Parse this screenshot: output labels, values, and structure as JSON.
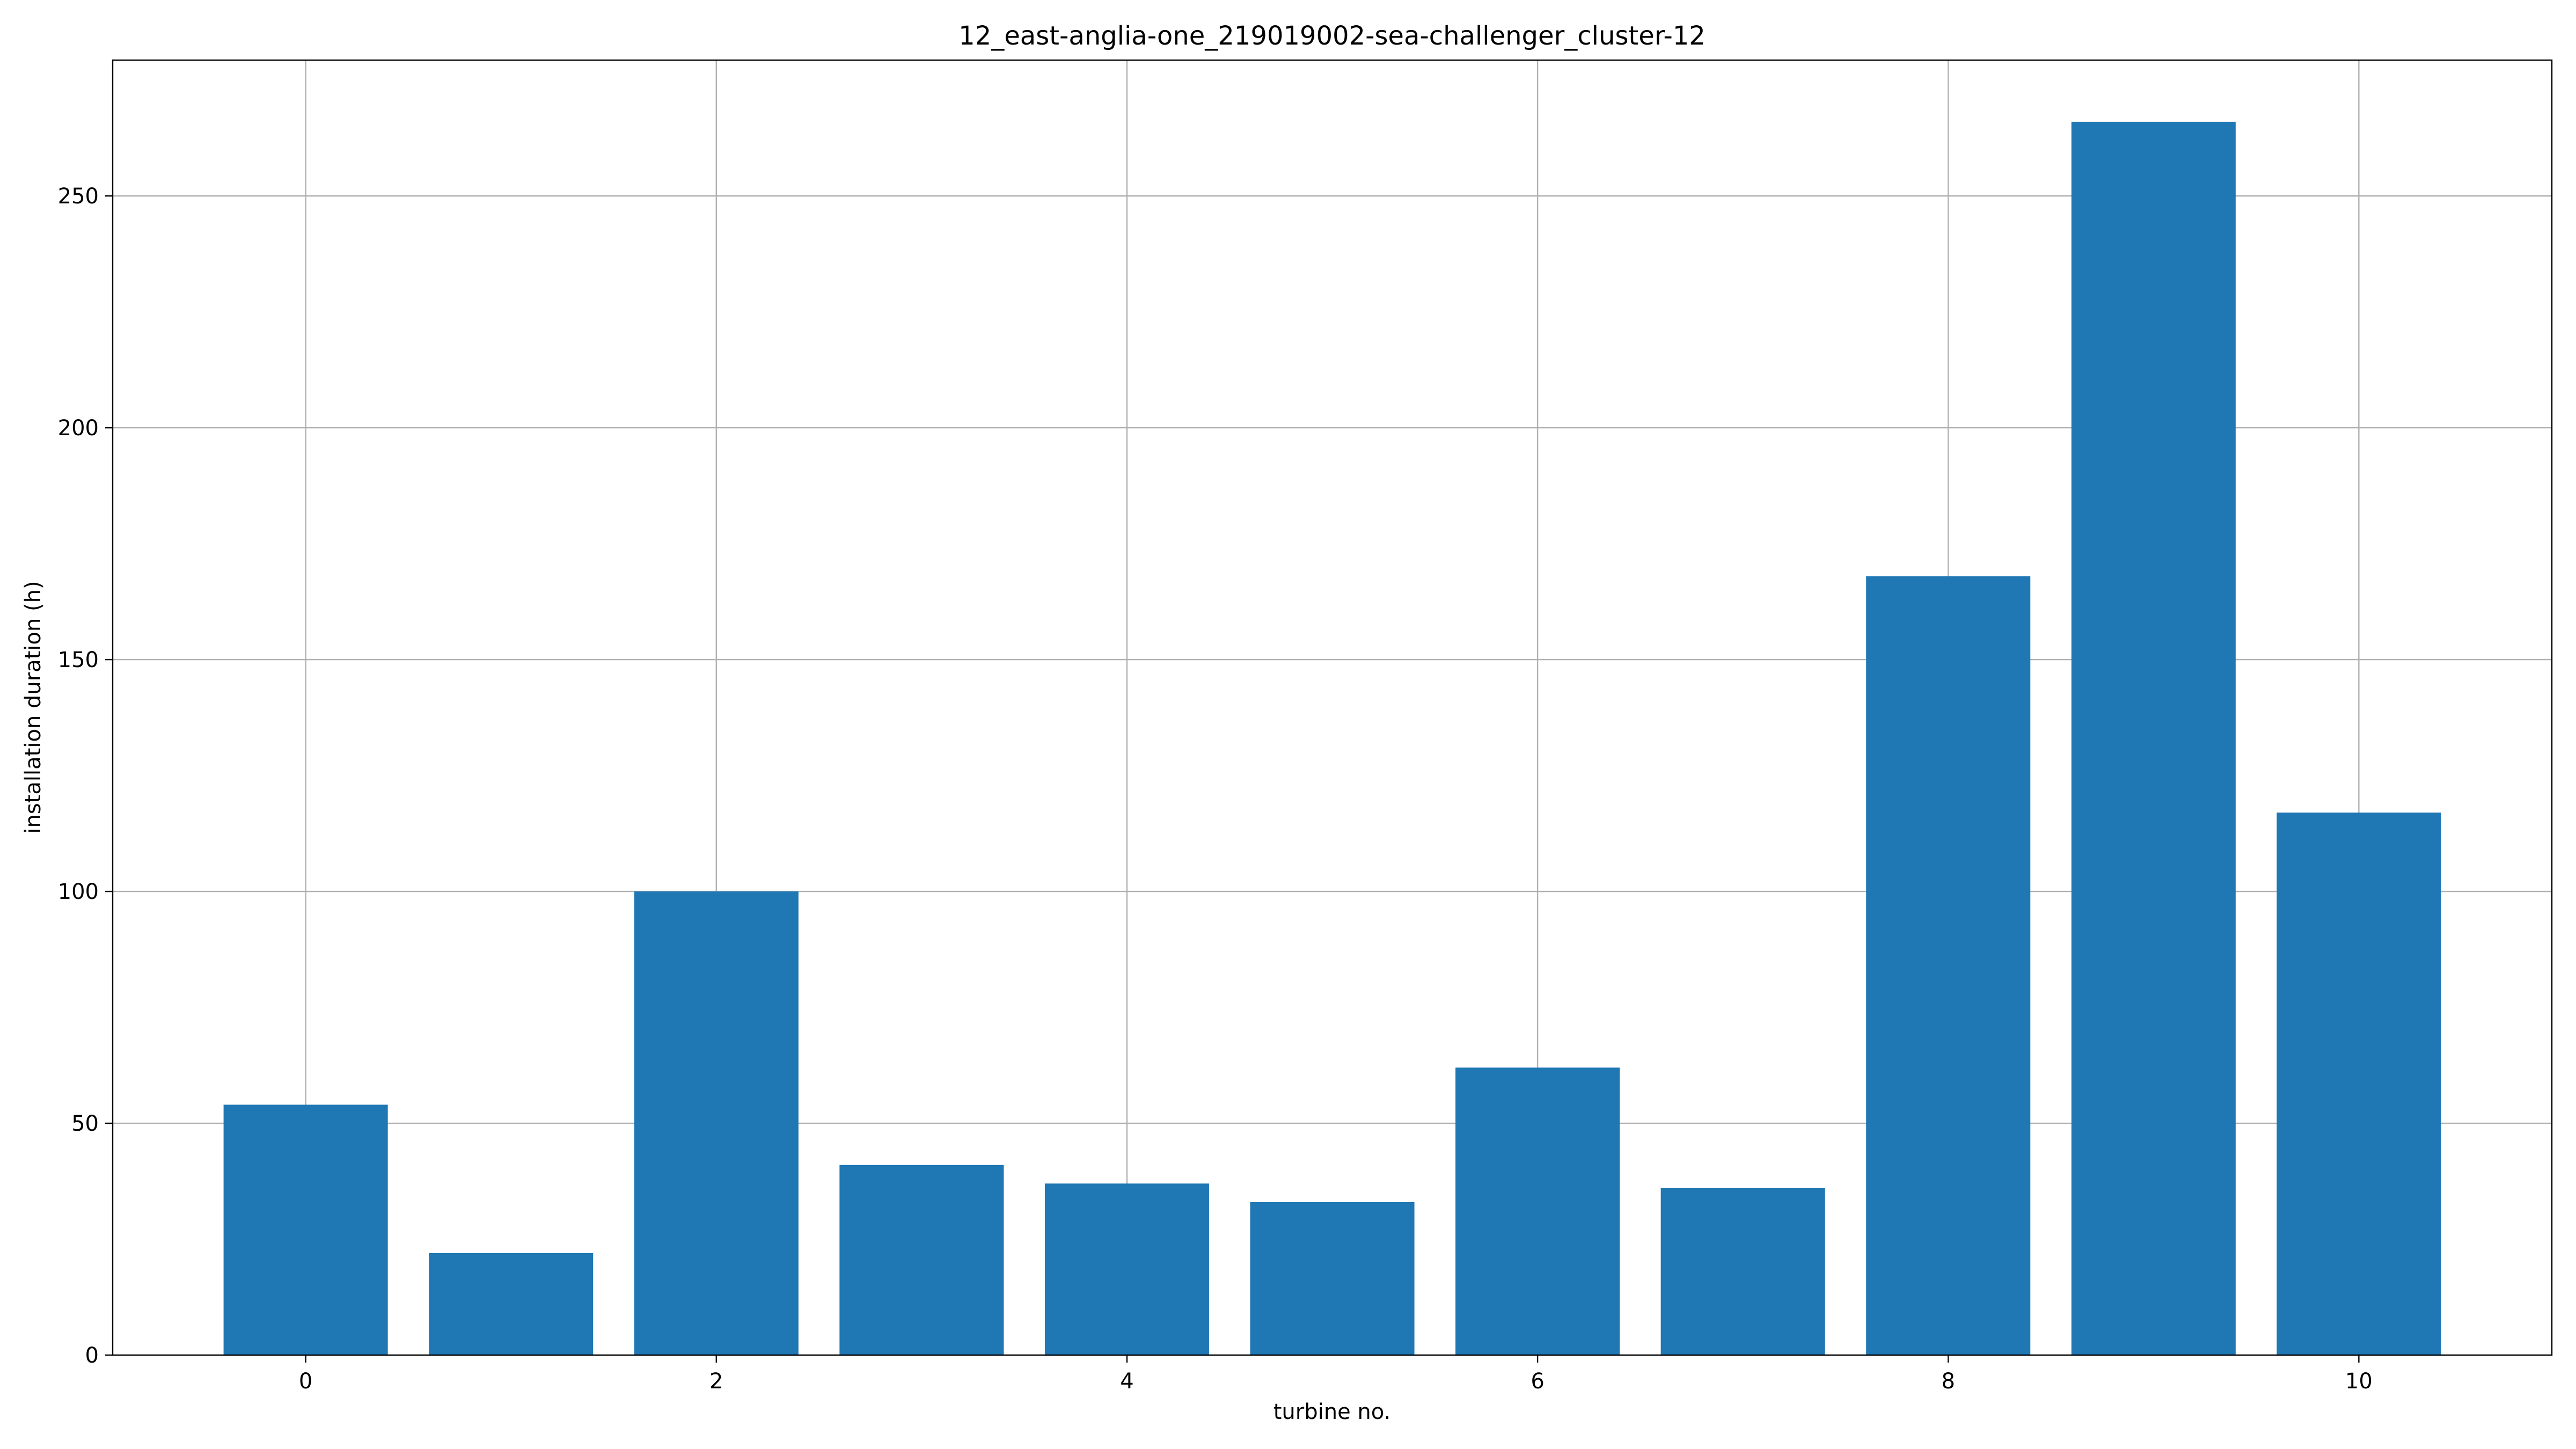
{
  "chart_data": {
    "type": "bar",
    "title": "12_east-anglia-one_219019002-sea-challenger_cluster-12",
    "xlabel": "turbine no.",
    "ylabel": "installation duration (h)",
    "x": [
      0,
      1,
      2,
      3,
      4,
      5,
      6,
      7,
      8,
      9,
      10
    ],
    "values": [
      54,
      22,
      100,
      41,
      37,
      33,
      62,
      36,
      168,
      266,
      117
    ],
    "xlim": [
      -0.94,
      10.94
    ],
    "ylim": [
      0,
      279.3
    ],
    "xticks": [
      0,
      2,
      4,
      6,
      8,
      10
    ],
    "xtick_labels": [
      "0",
      "2",
      "4",
      "6",
      "8",
      "10"
    ],
    "yticks": [
      0,
      50,
      100,
      150,
      200,
      250
    ],
    "ytick_labels": [
      "0",
      "50",
      "100",
      "150",
      "200",
      "250"
    ],
    "bar_color": "#1f77b4",
    "grid": true,
    "legend": "none"
  }
}
